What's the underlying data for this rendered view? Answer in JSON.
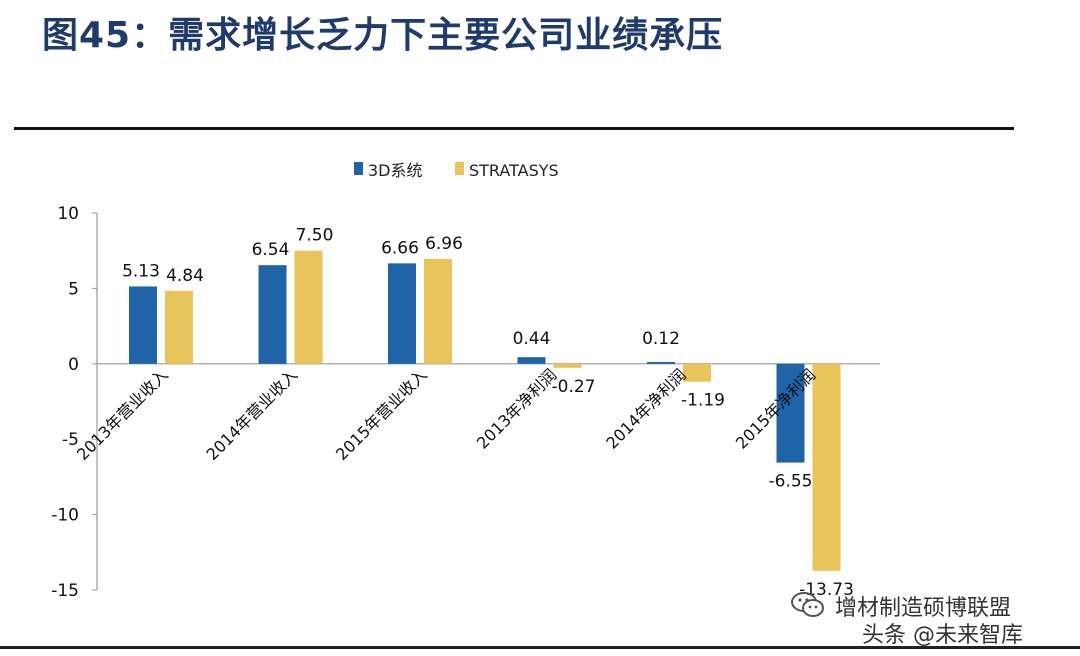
{
  "title": "图45：需求增长乏力下主要公司业绩承压",
  "colors": {
    "series_1": "#1f64a8",
    "series_2": "#e9c45a",
    "title": "#1f3b6b"
  },
  "chart_data": {
    "type": "bar",
    "categories": [
      "2013年营业收入",
      "2014年营业收入",
      "2015年营业收入",
      "2013年净利润",
      "2014年净利润",
      "2015年净利润"
    ],
    "series": [
      {
        "name": "3D系统",
        "values": [
          5.13,
          6.54,
          6.66,
          0.44,
          0.12,
          -6.55
        ],
        "labels": [
          "5.13",
          "6.54",
          "6.66",
          "0.44",
          "0.12",
          "-6.55"
        ]
      },
      {
        "name": "STRATASYS",
        "values": [
          4.84,
          7.5,
          6.96,
          -0.27,
          -1.19,
          -13.73
        ],
        "labels": [
          "4.84",
          "7.50",
          "6.96",
          "-0.27",
          "-1.19",
          "-13.73"
        ]
      }
    ],
    "ylim": [
      -15,
      10
    ],
    "yticks": [
      10,
      5,
      0,
      -5,
      -10,
      -15
    ],
    "legend": "top-center",
    "grid": false
  },
  "watermark": {
    "line1": "增材制造硕博联盟",
    "line2": "头条 @未来智库"
  },
  "icons": {
    "watermark": "wechat-icon"
  }
}
